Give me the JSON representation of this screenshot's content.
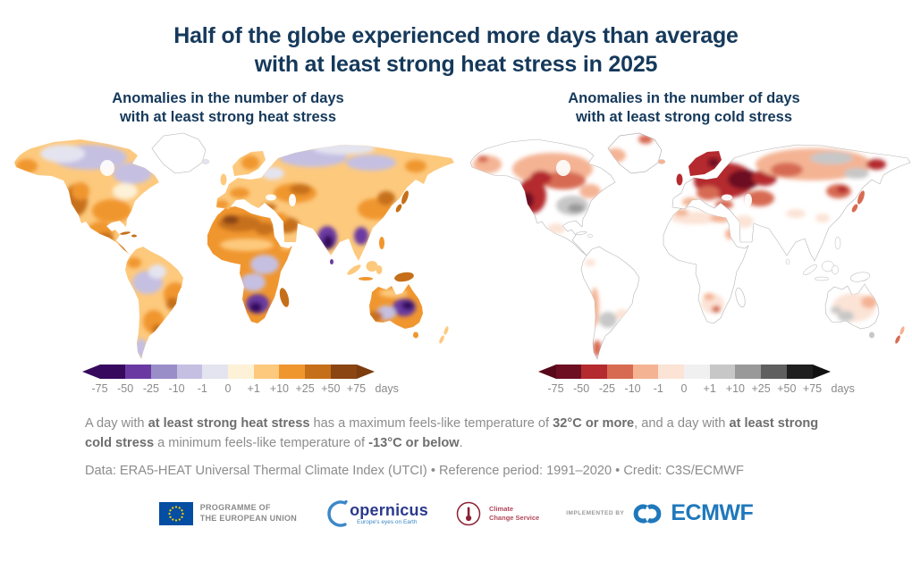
{
  "title": {
    "line1": "Half of the globe experienced more days than average",
    "line2": "with at least strong heat stress in 2025"
  },
  "panels": [
    {
      "subtitle_line1": "Anomalies in the number of days",
      "subtitle_line2": "with at least strong heat stress"
    },
    {
      "subtitle_line1": "Anomalies in the number of days",
      "subtitle_line2": "with at least strong cold stress"
    }
  ],
  "chart_data": [
    {
      "type": "heatmap",
      "subtype": "choropleth-world-map",
      "title": "Anomalies in the number of days with at least strong heat stress",
      "unit": "days",
      "legend_position": "bottom",
      "colorbar": {
        "ticks": [
          "-75",
          "-50",
          "-25",
          "-10",
          "-1",
          "0",
          "+1",
          "+10",
          "+25",
          "+50",
          "+75"
        ],
        "stops": [
          "#36095e",
          "#6a3aa2",
          "#9a8ec9",
          "#c5c0e2",
          "#e4e4f0",
          "#fdf1d7",
          "#fdc97d",
          "#f0962f",
          "#c66f1a",
          "#8a4513"
        ],
        "arrow_left": "#36095e",
        "arrow_right": "#7c3c0e"
      },
      "summary": {
        "positive_anomaly_regions": "Most of North America, eastern South America, Europe, the Sahara and North Africa, the Middle East, Central and East Asia and much of Australia show more heat-stress days than average (orange to brown).",
        "negative_anomaly_regions": "India, mainland Southeast Asia, central-southern Africa, central-eastern Australia, the western Amazon and Patagonia show fewer heat-stress days than average (purple).",
        "high_latitude_regions": "Northern Canada and Siberia are pale lavender (small negative anomalies); Greenland is outline only."
      }
    },
    {
      "type": "heatmap",
      "subtype": "choropleth-world-map",
      "title": "Anomalies in the number of days with at least strong cold stress",
      "unit": "days",
      "legend_position": "bottom",
      "colorbar": {
        "ticks": [
          "-75",
          "-50",
          "-25",
          "-10",
          "-1",
          "0",
          "+1",
          "+10",
          "+25",
          "+50",
          "+75"
        ],
        "stops": [
          "#6d0e22",
          "#b42a2e",
          "#d76b52",
          "#f4b494",
          "#fbe3d6",
          "#f0f0f0",
          "#c7c7c7",
          "#999999",
          "#5f5f5f",
          "#1f1f1f"
        ],
        "arrow_left": "#57081a",
        "arrow_right": "#111111"
      },
      "summary": {
        "negative_anomaly_regions": "Most Northern Hemisphere land shows fewer cold-stress days than average (red), darkest over eastern Europe and western Russia; also western North America, Scandinavia and parts of Siberia.",
        "positive_anomaly_regions": "Central-eastern United States, patches of Siberia, southern South America and parts of Australia show more cold-stress days (grey).",
        "near_zero_regions": "Tropical land areas are white or near-white (little change)."
      }
    }
  ],
  "footnote": {
    "segments": [
      {
        "t": "A day with ",
        "b": false
      },
      {
        "t": "at least strong heat stress",
        "b": true
      },
      {
        "t": " has a maximum feels-like temperature of ",
        "b": false
      },
      {
        "t": "32°C or more",
        "b": true
      },
      {
        "t": ", and a day with ",
        "b": false
      },
      {
        "t": "at least strong cold stress",
        "b": true
      },
      {
        "t": " a minimum feels-like temperature of ",
        "b": false
      },
      {
        "t": "-13°C or below",
        "b": true
      },
      {
        "t": ".",
        "b": false
      }
    ]
  },
  "data_line": "Data: ERA5-HEAT Universal Thermal Climate Index (UTCI) • Reference period: 1991–2020 • Credit: C3S/ECMWF",
  "logos": {
    "eu": {
      "line1": "PROGRAMME OF",
      "line2": "THE EUROPEAN UNION"
    },
    "copernicus": {
      "wordmark": "opernicus",
      "tagline": "Europe's eyes on Earth"
    },
    "c3s": {
      "line1": "Climate",
      "line2": "Change Service"
    },
    "implemented_by": "IMPLEMENTED BY",
    "ecmwf": "ECMWF"
  }
}
